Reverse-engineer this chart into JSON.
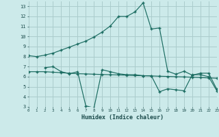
{
  "xlabel": "Humidex (Indice chaleur)",
  "bg_color": "#cceaea",
  "grid_color": "#aacccc",
  "line_color": "#1a6b60",
  "line1_x": [
    0,
    1,
    2,
    3,
    4,
    5,
    6,
    7,
    8,
    9,
    10,
    11,
    12,
    13,
    14,
    15,
    16,
    17,
    18,
    19,
    20,
    21,
    22,
    23
  ],
  "line1_y": [
    8.1,
    8.0,
    8.15,
    8.35,
    8.65,
    8.95,
    9.25,
    9.55,
    9.95,
    10.45,
    11.05,
    12.0,
    12.0,
    12.45,
    13.35,
    10.75,
    10.85,
    6.55,
    6.25,
    6.55,
    6.15,
    6.35,
    6.35,
    4.75
  ],
  "line2_x": [
    0,
    1,
    2,
    3,
    4,
    5,
    6,
    7,
    8,
    9,
    10,
    11,
    12,
    13,
    14,
    15,
    16,
    17,
    18,
    19,
    20,
    21,
    22,
    23
  ],
  "line2_y": [
    6.5,
    6.5,
    6.5,
    6.45,
    6.4,
    6.35,
    6.3,
    6.28,
    6.25,
    6.22,
    6.2,
    6.18,
    6.15,
    6.12,
    6.1,
    6.08,
    6.05,
    6.03,
    6.0,
    5.98,
    5.95,
    5.92,
    5.88,
    5.85
  ],
  "line3_x": [
    2,
    3,
    4,
    5,
    6,
    7,
    8,
    9,
    10,
    11,
    12,
    13,
    14,
    15,
    16,
    17,
    18,
    19,
    20,
    21,
    22,
    23
  ],
  "line3_y": [
    6.9,
    7.0,
    6.5,
    6.3,
    6.5,
    3.1,
    2.9,
    6.7,
    6.5,
    6.3,
    6.2,
    6.2,
    6.1,
    6.1,
    4.5,
    4.8,
    4.7,
    4.6,
    6.2,
    6.2,
    6.0,
    4.6
  ],
  "xlim": [
    0,
    23
  ],
  "ylim": [
    3,
    13.5
  ],
  "yticks": [
    3,
    4,
    5,
    6,
    7,
    8,
    9,
    10,
    11,
    12,
    13
  ],
  "xticks": [
    0,
    1,
    2,
    3,
    4,
    5,
    6,
    7,
    8,
    9,
    10,
    11,
    12,
    13,
    14,
    15,
    16,
    17,
    18,
    19,
    20,
    21,
    22,
    23
  ]
}
